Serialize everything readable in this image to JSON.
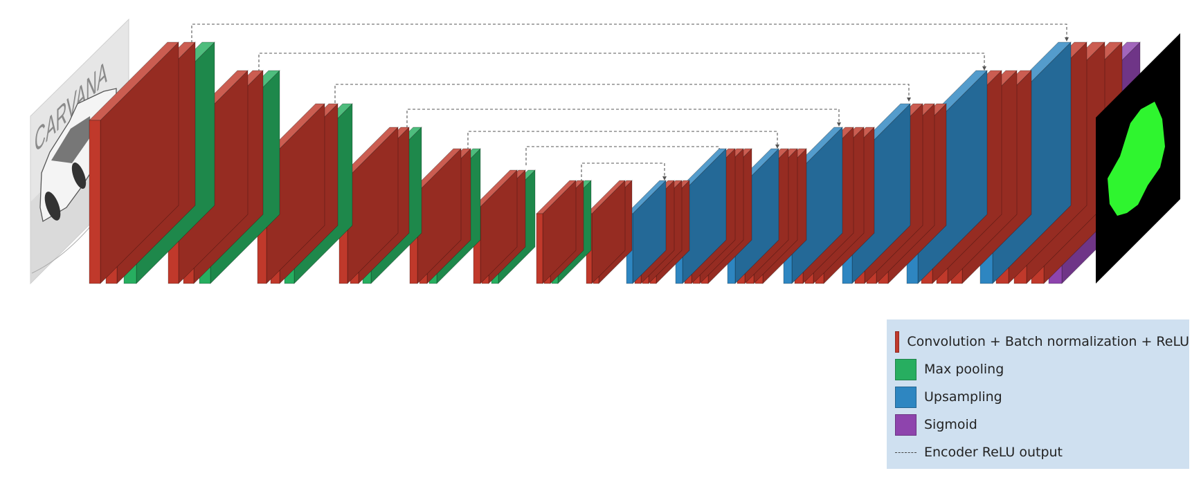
{
  "colors": {
    "conv": "#c0392b",
    "pool": "#27ae60",
    "upsample": "#2e86c1",
    "sigmoid": "#8e44ad",
    "skip_line": "#555555"
  },
  "input_image": {
    "icon": "car-photo-icon",
    "watermark": "CARVANA"
  },
  "output_mask": {
    "icon": "car-mask-icon",
    "mask_color": "#2ff52f",
    "background": "#000000"
  },
  "legend": {
    "items": [
      {
        "type": "conv",
        "label": "Convolution + Batch normalization + ReLU"
      },
      {
        "type": "pool",
        "label": "Max pooling"
      },
      {
        "type": "upsample",
        "label": "Upsampling"
      },
      {
        "type": "sigmoid",
        "label": "Sigmoid"
      },
      {
        "type": "skip",
        "label": "Encoder ReLU output"
      }
    ]
  }
}
